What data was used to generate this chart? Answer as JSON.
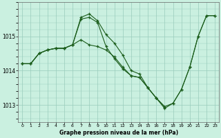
{
  "title": "Graphe pression niveau de la mer (hPa)",
  "bg_color": "#caf0e0",
  "line_color": "#1a5c1a",
  "grid_color": "#99ccbb",
  "line1": {
    "x": [
      0,
      1,
      2,
      3,
      4,
      5,
      6,
      7,
      8,
      9,
      10,
      11,
      12,
      13,
      14,
      15,
      16,
      17,
      18,
      19,
      20,
      21,
      22,
      23
    ],
    "y": [
      1014.2,
      1014.2,
      1014.5,
      1014.6,
      1014.65,
      1014.65,
      1014.75,
      1015.55,
      1015.65,
      1015.45,
      1015.05,
      1014.8,
      1014.45,
      1014.0,
      1013.9,
      1013.5,
      1013.2,
      1012.9,
      1013.05,
      1013.45,
      1014.1,
      1015.0,
      1015.6,
      1015.6
    ]
  },
  "line2": {
    "x": [
      0,
      1,
      2,
      3,
      4,
      5,
      6,
      7,
      8,
      9,
      10,
      11,
      12,
      13,
      14,
      15,
      16,
      17,
      18,
      19,
      20,
      21,
      22,
      23
    ],
    "y": [
      1014.2,
      1014.2,
      1014.5,
      1014.6,
      1014.65,
      1014.65,
      1014.75,
      1014.9,
      1014.75,
      1014.7,
      1014.6,
      1014.4,
      1014.1,
      1013.85,
      1013.8,
      1013.5,
      1013.2,
      1012.95,
      1013.05,
      1013.45,
      1014.1,
      1015.0,
      1015.6,
      1015.6
    ]
  },
  "line3": {
    "x": [
      0,
      1,
      2,
      3,
      4,
      5,
      6,
      7,
      8,
      9,
      10,
      11,
      12,
      13,
      14,
      15,
      16,
      17
    ],
    "y": [
      1014.2,
      1014.2,
      1014.5,
      1014.6,
      1014.65,
      1014.65,
      1014.75,
      1015.5,
      1015.55,
      1015.4,
      1014.7,
      1014.35,
      1014.05,
      1013.85,
      1013.8,
      1013.5,
      1013.2,
      1012.95
    ]
  },
  "ylim": [
    1012.5,
    1016.0
  ],
  "yticks": [
    1013,
    1014,
    1015
  ],
  "xlim": [
    -0.5,
    23.5
  ],
  "xticks": [
    0,
    1,
    2,
    3,
    4,
    5,
    6,
    7,
    8,
    9,
    10,
    11,
    12,
    13,
    14,
    15,
    16,
    17,
    18,
    19,
    20,
    21,
    22,
    23
  ]
}
